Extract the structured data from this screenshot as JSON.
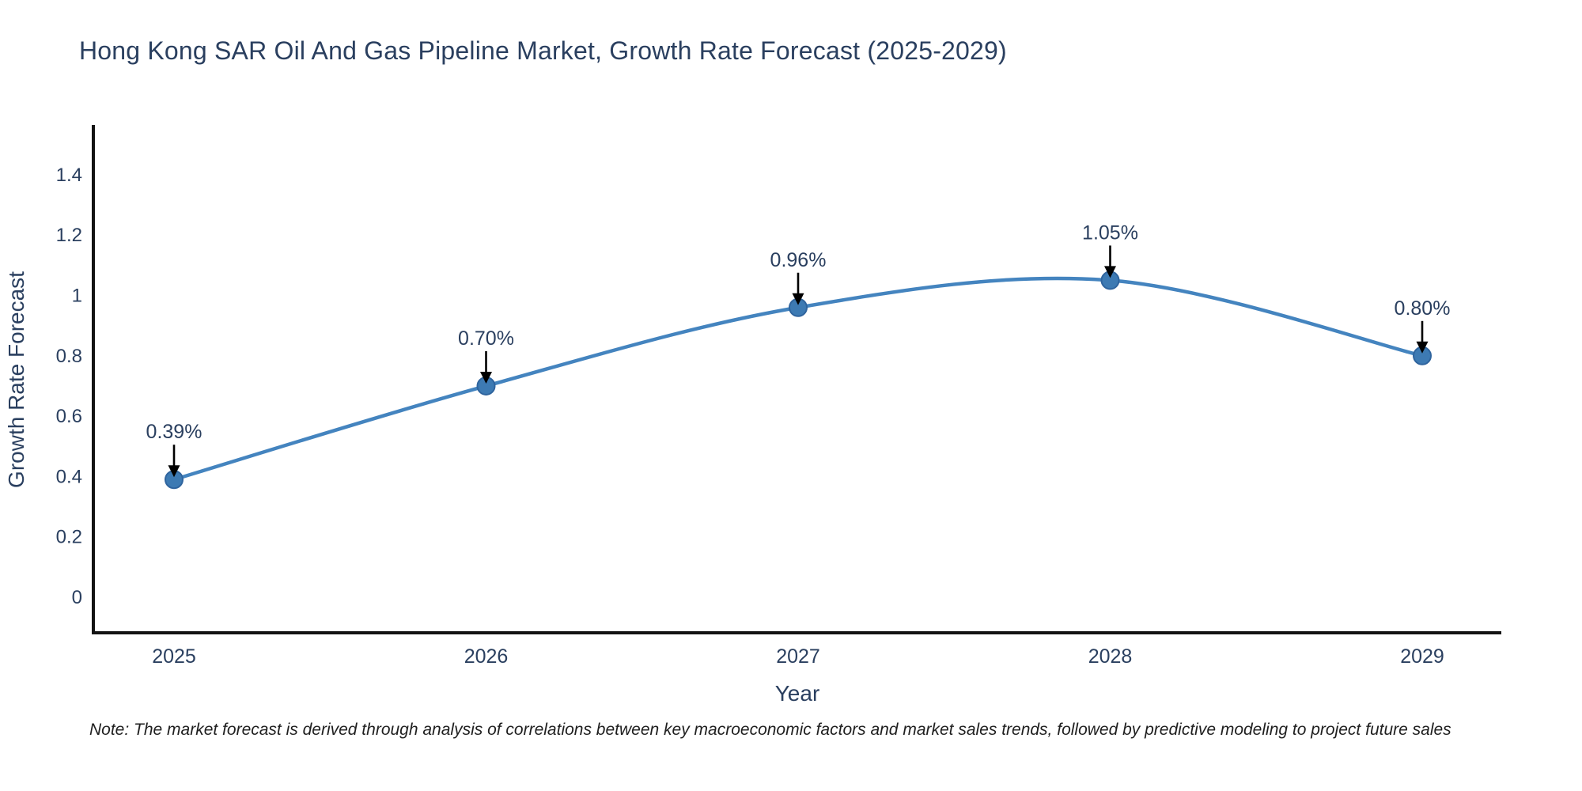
{
  "title": "Hong Kong SAR Oil And Gas Pipeline Market, Growth Rate Forecast (2025-2029)",
  "note": "Note: The market forecast is derived through analysis of correlations between key macroeconomic factors and market sales trends, followed by predictive modeling to project future sales",
  "chart_data": {
    "type": "line",
    "title": "Hong Kong SAR Oil And Gas Pipeline Market, Growth Rate Forecast (2025-2029)",
    "xlabel": "Year",
    "ylabel": "Growth Rate Forecast",
    "categories": [
      "2025",
      "2026",
      "2027",
      "2028",
      "2029"
    ],
    "series": [
      {
        "name": "Growth Rate Forecast",
        "values": [
          0.39,
          0.7,
          0.96,
          1.05,
          0.8
        ]
      }
    ],
    "point_labels": [
      "0.39%",
      "0.70%",
      "0.96%",
      "1.05%",
      "0.80%"
    ],
    "y_ticks": [
      0,
      0.2,
      0.4,
      0.6,
      0.8,
      1,
      1.2,
      1.4
    ],
    "y_tick_labels": [
      "0",
      "0.2",
      "0.4",
      "0.6",
      "0.8",
      "1",
      "1.2",
      "1.4"
    ],
    "ylim": [
      -0.12,
      1.57
    ],
    "line_shape": "spline",
    "grid": false,
    "legend_position": "none",
    "annotation_style": "value-label-with-down-arrow",
    "colors": {
      "line": "#4484bf",
      "marker_fill": "#3d7ab3",
      "marker_stroke": "#2f649e",
      "arrow": "#000000",
      "text": "#2a3f5f",
      "axis": "#131313",
      "background": "#ffffff"
    }
  }
}
